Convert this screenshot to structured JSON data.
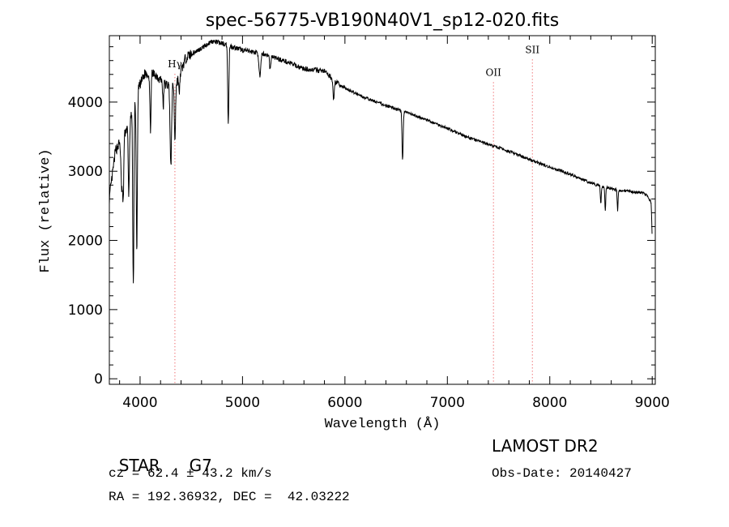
{
  "chart_data": {
    "type": "line",
    "title": "spec-56775-VB190N40V1_sp12-020.fits",
    "xlabel": "Wavelength (Å)",
    "ylabel": "Flux (relative)",
    "xlim": [
      3700,
      9030
    ],
    "ylim": [
      -80,
      4960
    ],
    "xticks": [
      4000,
      5000,
      6000,
      7000,
      8000,
      9000
    ],
    "xtick_labels": [
      "4000",
      "5000",
      "6000",
      "7000",
      "8000",
      "9000"
    ],
    "yticks": [
      0,
      1000,
      2000,
      3000,
      4000
    ],
    "ytick_labels": [
      "0",
      "1000",
      "2000",
      "3000",
      "4000"
    ],
    "grid": false,
    "series": [
      {
        "name": "spectrum",
        "continuum": [
          [
            3700,
            2600
          ],
          [
            3760,
            3300
          ],
          [
            3830,
            3500
          ],
          [
            3900,
            3700
          ],
          [
            3970,
            4150
          ],
          [
            4050,
            4420
          ],
          [
            4150,
            4400
          ],
          [
            4250,
            4250
          ],
          [
            4350,
            4250
          ],
          [
            4450,
            4650
          ],
          [
            4600,
            4780
          ],
          [
            4700,
            4880
          ],
          [
            4800,
            4850
          ],
          [
            5000,
            4750
          ],
          [
            5200,
            4700
          ],
          [
            5400,
            4600
          ],
          [
            5600,
            4480
          ],
          [
            5800,
            4450
          ],
          [
            5900,
            4300
          ],
          [
            6000,
            4200
          ],
          [
            6200,
            4060
          ],
          [
            6400,
            3950
          ],
          [
            6600,
            3850
          ],
          [
            6800,
            3740
          ],
          [
            7000,
            3620
          ],
          [
            7200,
            3490
          ],
          [
            7400,
            3390
          ],
          [
            7600,
            3290
          ],
          [
            7800,
            3170
          ],
          [
            8000,
            3060
          ],
          [
            8200,
            2960
          ],
          [
            8400,
            2830
          ],
          [
            8500,
            2780
          ],
          [
            8700,
            2720
          ],
          [
            8900,
            2690
          ],
          [
            8950,
            2650
          ],
          [
            8990,
            2550
          ],
          [
            9000,
            2000
          ]
        ],
        "absorption_lines": [
          {
            "wave": 3820,
            "depth": 700,
            "width": 10
          },
          {
            "wave": 3835,
            "depth": 900,
            "width": 8
          },
          {
            "wave": 3890,
            "depth": 1000,
            "width": 8
          },
          {
            "wave": 3934,
            "depth": 2600,
            "width": 8
          },
          {
            "wave": 3968,
            "depth": 2300,
            "width": 8
          },
          {
            "wave": 4101,
            "depth": 800,
            "width": 8
          },
          {
            "wave": 4226,
            "depth": 400,
            "width": 6
          },
          {
            "wave": 4300,
            "depth": 1200,
            "width": 10
          },
          {
            "wave": 4340,
            "depth": 800,
            "width": 8
          },
          {
            "wave": 4383,
            "depth": 300,
            "width": 6
          },
          {
            "wave": 4861,
            "depth": 1100,
            "width": 8
          },
          {
            "wave": 5170,
            "depth": 350,
            "width": 12
          },
          {
            "wave": 5270,
            "depth": 200,
            "width": 8
          },
          {
            "wave": 5890,
            "depth": 300,
            "width": 8
          },
          {
            "wave": 6563,
            "depth": 700,
            "width": 8
          },
          {
            "wave": 8498,
            "depth": 250,
            "width": 6
          },
          {
            "wave": 8542,
            "depth": 350,
            "width": 6
          },
          {
            "wave": 8662,
            "depth": 300,
            "width": 6
          }
        ],
        "noise_amplitude": 70
      }
    ],
    "annotations": [
      {
        "label": "Hγ",
        "wave": 4340,
        "label_flux": 4500
      },
      {
        "label": "OII",
        "wave": 7450,
        "label_flux": 4380
      },
      {
        "label": "SII",
        "wave": 7830,
        "label_flux": 4710
      }
    ],
    "line_color": "#000000",
    "marker_color": "#e8363a"
  },
  "info": {
    "object_class": "STAR",
    "subclass": "G7",
    "survey": "LAMOST DR2",
    "redshift": "cz = 62.4 ± 43.2 km/s",
    "obs_date": "Obs-Date: 20140427",
    "coords": "RA = 192.36932, DEC =  42.03222"
  }
}
